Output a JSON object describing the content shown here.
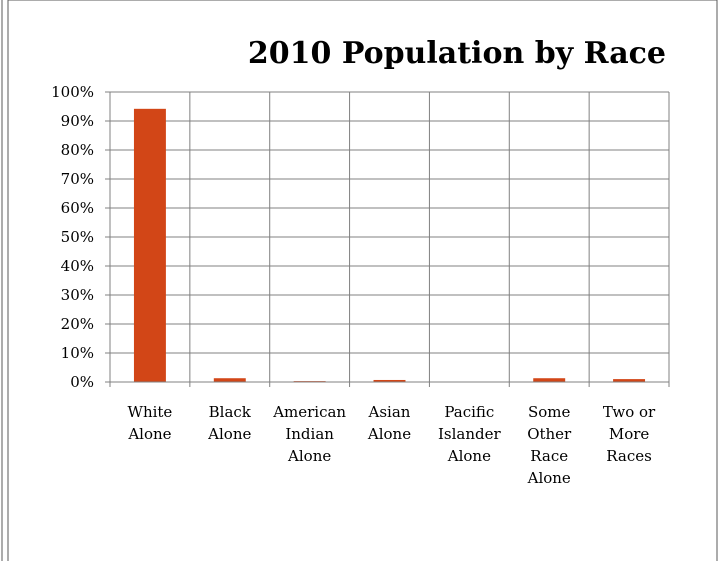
{
  "chart_data": {
    "type": "bar",
    "title": "2010 Population by Race",
    "xlabel": "",
    "ylabel": "",
    "ylim": [
      0,
      100
    ],
    "y_ticks": [
      "0%",
      "10%",
      "20%",
      "30%",
      "40%",
      "50%",
      "60%",
      "70%",
      "80%",
      "90%",
      "100%"
    ],
    "categories": [
      [
        "White",
        "Alone"
      ],
      [
        "Black",
        "Alone"
      ],
      [
        "American",
        "Indian",
        "Alone"
      ],
      [
        "Asian",
        "Alone"
      ],
      [
        "Pacific",
        "Islander",
        "Alone"
      ],
      [
        "Some",
        "Other",
        "Race",
        "Alone"
      ],
      [
        "Two or",
        "More",
        "Races"
      ]
    ],
    "values": [
      94.2,
      1.3,
      0.3,
      0.7,
      0.0,
      1.3,
      1.0
    ],
    "grid": true,
    "legend": "none",
    "colors": {
      "bar": "#D24617",
      "grid": "#808080",
      "frame": "#595959"
    }
  }
}
